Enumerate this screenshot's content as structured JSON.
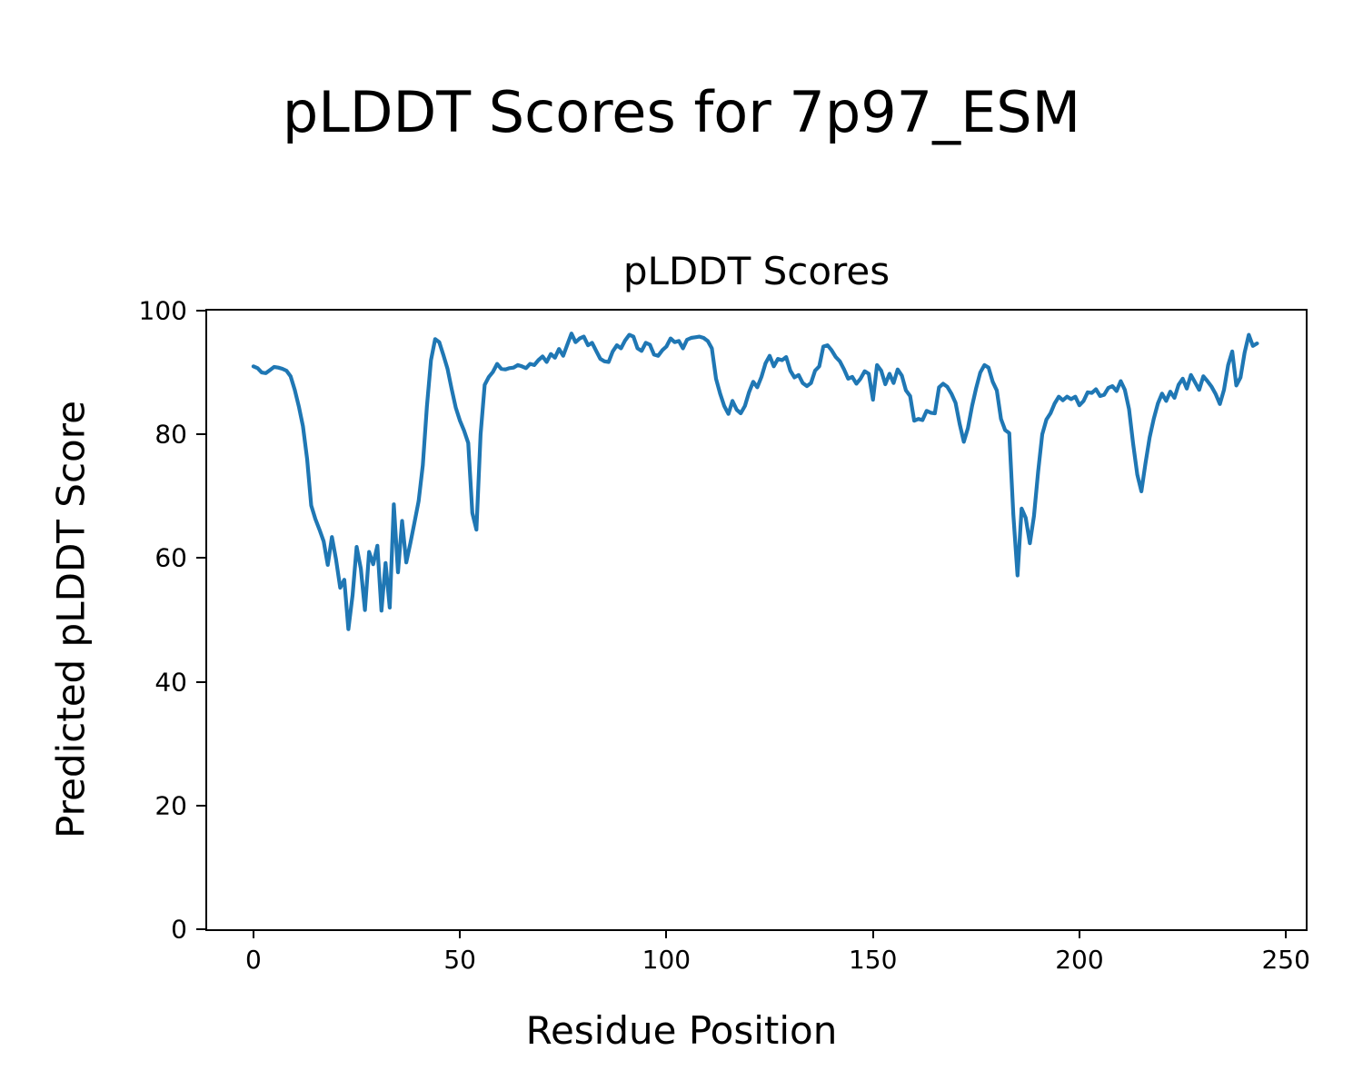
{
  "figure": {
    "suptitle": "pLDDT Scores for 7p97_ESM"
  },
  "chart_data": {
    "type": "line",
    "title": "pLDDT Scores",
    "xlabel": "Residue Position",
    "ylabel": "Predicted pLDDT Score",
    "xlim": [
      -11.2,
      254.8
    ],
    "ylim": [
      0,
      100
    ],
    "x_ticks": [
      0,
      50,
      100,
      150,
      200,
      250
    ],
    "y_ticks": [
      0,
      20,
      40,
      60,
      80,
      100
    ],
    "grid": false,
    "legend": false,
    "line_color": "#1f77b4",
    "line_width": 4.2,
    "series": [
      {
        "name": "pLDDT",
        "color": "#1f77b4",
        "x_start": 0,
        "x_step": 1,
        "values": [
          91.0,
          90.7,
          90.0,
          89.9,
          90.4,
          90.9,
          90.8,
          90.6,
          90.3,
          89.4,
          87.2,
          84.5,
          81.3,
          76.0,
          68.5,
          66.3,
          64.6,
          62.7,
          58.9,
          63.4,
          59.8,
          55.2,
          56.5,
          48.5,
          54.0,
          61.8,
          58.3,
          51.6,
          61.0,
          59.0,
          62.0,
          51.5,
          59.2,
          52.0,
          68.7,
          57.7,
          66.0,
          59.3,
          62.4,
          65.8,
          69.2,
          75.0,
          84.5,
          92.0,
          95.4,
          94.9,
          92.8,
          90.6,
          87.3,
          84.3,
          82.2,
          80.6,
          78.6,
          67.3,
          64.6,
          80.0,
          88.0,
          89.3,
          90.1,
          91.4,
          90.6,
          90.5,
          90.7,
          90.8,
          91.2,
          91.0,
          90.7,
          91.4,
          91.2,
          92.0,
          92.6,
          91.7,
          93.0,
          92.4,
          93.8,
          92.7,
          94.5,
          96.3,
          94.9,
          95.5,
          95.8,
          94.4,
          94.8,
          93.5,
          92.2,
          91.8,
          91.7,
          93.4,
          94.4,
          93.9,
          95.2,
          96.1,
          95.8,
          93.9,
          93.5,
          94.8,
          94.5,
          92.9,
          92.7,
          93.6,
          94.2,
          95.5,
          94.9,
          95.1,
          93.9,
          95.3,
          95.6,
          95.7,
          95.8,
          95.6,
          95.1,
          93.9,
          89.0,
          86.6,
          84.6,
          83.3,
          85.4,
          84.0,
          83.4,
          84.6,
          86.8,
          88.5,
          87.6,
          89.3,
          91.5,
          92.7,
          91.0,
          92.2,
          92.0,
          92.5,
          90.3,
          89.2,
          89.6,
          88.3,
          87.8,
          88.3,
          90.3,
          91.0,
          94.2,
          94.4,
          93.6,
          92.5,
          91.8,
          90.5,
          89.0,
          89.3,
          88.2,
          89.0,
          90.2,
          89.8,
          85.6,
          91.2,
          90.3,
          88.1,
          89.8,
          88.3,
          90.5,
          89.5,
          87.1,
          86.2,
          82.2,
          82.5,
          82.3,
          83.8,
          83.5,
          83.4,
          87.6,
          88.2,
          87.7,
          86.6,
          85.1,
          81.7,
          78.8,
          81.0,
          84.6,
          87.5,
          90.0,
          91.2,
          90.8,
          88.5,
          87.1,
          82.5,
          80.7,
          80.2,
          67.0,
          57.2,
          68.0,
          66.5,
          62.4,
          66.8,
          74.0,
          80.0,
          82.4,
          83.4,
          85.0,
          86.1,
          85.5,
          86.1,
          85.7,
          86.1,
          84.7,
          85.4,
          86.8,
          86.7,
          87.3,
          86.2,
          86.4,
          87.5,
          87.8,
          87.0,
          88.6,
          87.2,
          84.1,
          78.5,
          73.5,
          70.8,
          75.3,
          79.5,
          82.5,
          85.0,
          86.6,
          85.4,
          86.9,
          85.9,
          88.0,
          89.0,
          87.4,
          89.6,
          88.4,
          87.2,
          89.4,
          88.6,
          87.7,
          86.5,
          84.9,
          87.2,
          91.2,
          93.4,
          87.9,
          89.2,
          93.2,
          96.1,
          94.3,
          94.7
        ]
      }
    ]
  }
}
